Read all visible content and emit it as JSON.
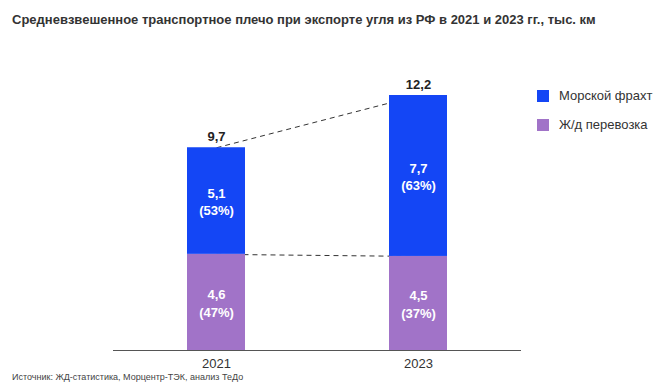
{
  "chart_data": {
    "type": "bar",
    "title": "Средневзвешенное транспортное плечо при экспорте угля из РФ в 2021 и 2023 гг., тыс. км",
    "source": "Источник: ЖД-статистика, Морцентр-ТЭК, анализ ТеДо",
    "categories": [
      "2021",
      "2023"
    ],
    "series": [
      {
        "name": "Морской фрахт",
        "color": "#1446f5",
        "values": [
          5.1,
          7.7
        ],
        "value_labels": [
          "5,1\n(53%)",
          "7,7\n(63%)"
        ]
      },
      {
        "name": "Ж/д перевозка",
        "color": "#a173c8",
        "values": [
          4.6,
          4.5
        ],
        "value_labels": [
          "4,6\n(47%)",
          "4,5\n(37%)"
        ]
      }
    ],
    "totals": [
      9.7,
      12.2
    ],
    "total_labels": [
      "9,7",
      "12,2"
    ],
    "ylim": [
      0,
      12.2
    ],
    "stacked": true,
    "data_labels": true,
    "tick_labels": "x",
    "legend": "right"
  }
}
